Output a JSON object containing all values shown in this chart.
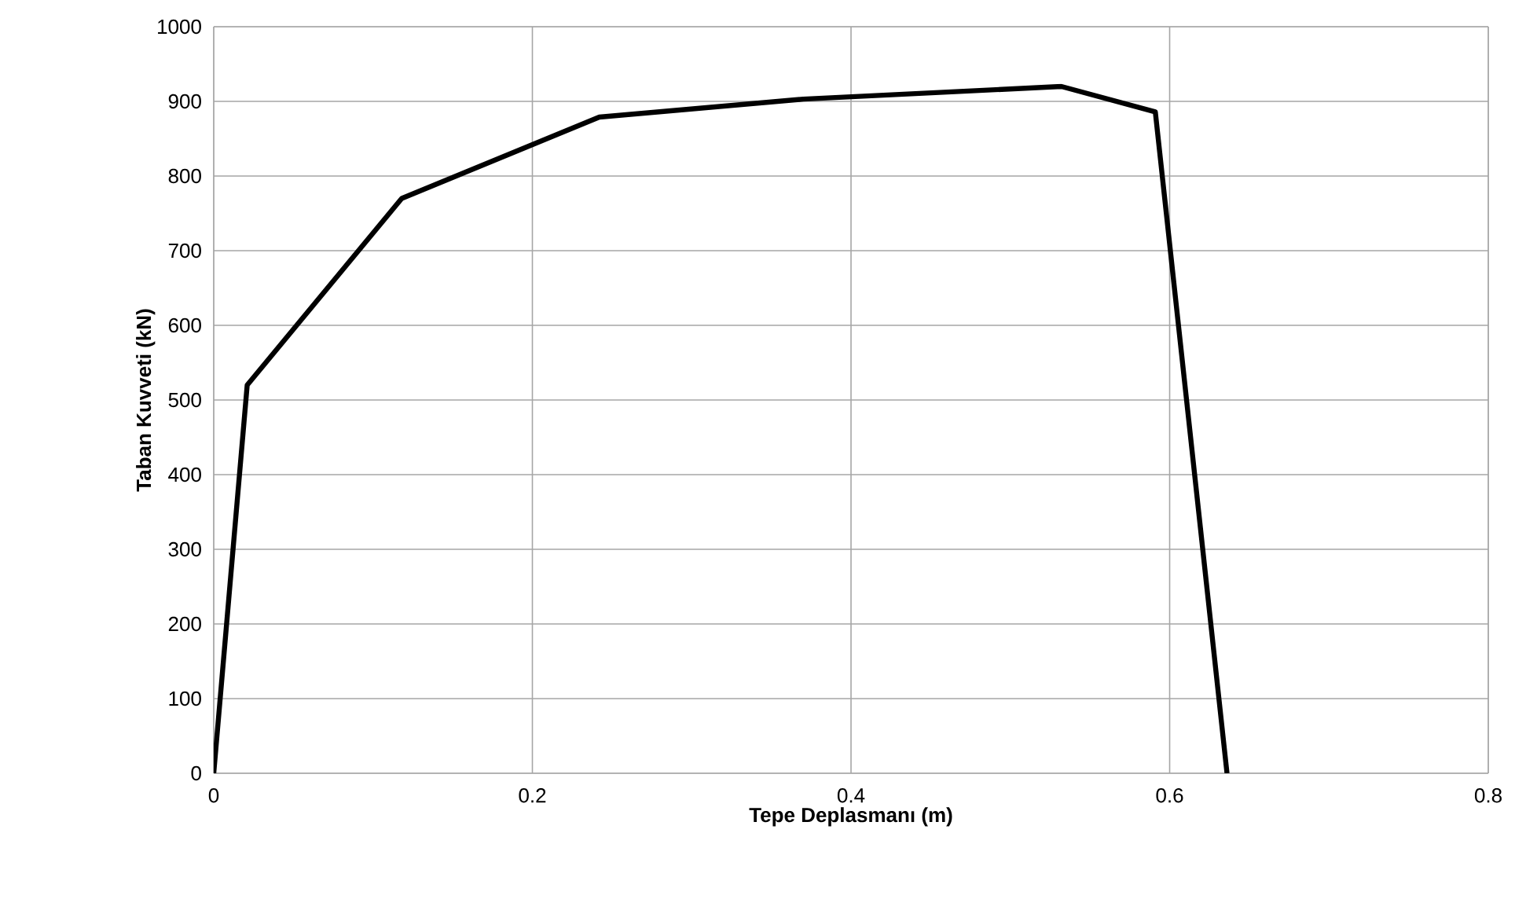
{
  "chart_data": {
    "type": "line",
    "xlabel": "Tepe Deplasmanı (m)",
    "ylabel": "Taban Kuvveti (kN)",
    "x": [
      0,
      0.021,
      0.118,
      0.242,
      0.37,
      0.532,
      0.591,
      0.636
    ],
    "series": [
      {
        "color": "#000000",
        "values": [
          0,
          520,
          770,
          879,
          903,
          920,
          886,
          0
        ]
      }
    ],
    "xlim": [
      0,
      0.8
    ],
    "ylim": [
      0,
      1000
    ],
    "xticks": [
      {
        "value": 0,
        "label": "0"
      },
      {
        "value": 0.2,
        "label": "0.2"
      },
      {
        "value": 0.4,
        "label": "0.4"
      },
      {
        "value": 0.6,
        "label": "0.6"
      },
      {
        "value": 0.8,
        "label": "0.8"
      }
    ],
    "yticks": [
      0,
      100,
      200,
      300,
      400,
      500,
      600,
      700,
      800,
      900,
      1000
    ],
    "grid": true,
    "marker": "none",
    "line_style": "solid"
  }
}
